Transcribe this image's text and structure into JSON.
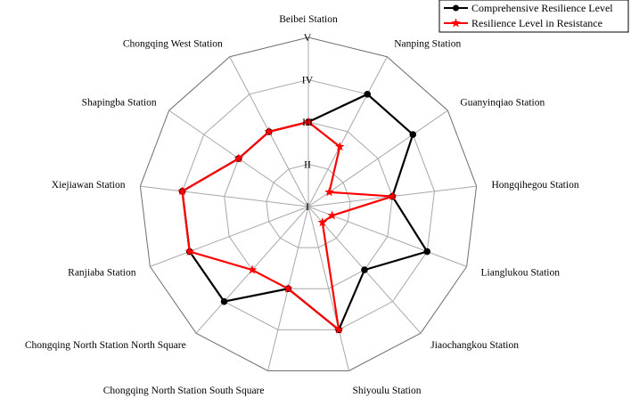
{
  "chart_data": {
    "type": "radar",
    "categories": [
      "Beibei Station",
      "Nanping Station",
      "Guanyinqiao Station",
      "Hongqihegou Station",
      "Lianglukou Station",
      "Jiaochangkou Station",
      "Shiyoulu Station",
      "Chongqing North Station South Square",
      "Chongqing North Station North Square",
      "Ranjiaba Station",
      "Xiejiawan Station",
      "Shapingba Station",
      "Chongqing West Station"
    ],
    "levels": [
      "I",
      "II",
      "III",
      "IV",
      "V"
    ],
    "range": [
      1,
      5
    ],
    "series": [
      {
        "name": "Comprehensive Resilience Level",
        "color": "#000000",
        "marker": "circle",
        "values": [
          3,
          4,
          4,
          3,
          4,
          3,
          4,
          3,
          4,
          4,
          4,
          3,
          3
        ]
      },
      {
        "name": "Resilience Level in Resistance",
        "color": "#ff0000",
        "marker": "star",
        "values": [
          3,
          2.6,
          1.6,
          3,
          1.6,
          1.5,
          4,
          3,
          3,
          4,
          4,
          3,
          3
        ]
      }
    ],
    "grid": true,
    "legend_position": "top-right"
  }
}
